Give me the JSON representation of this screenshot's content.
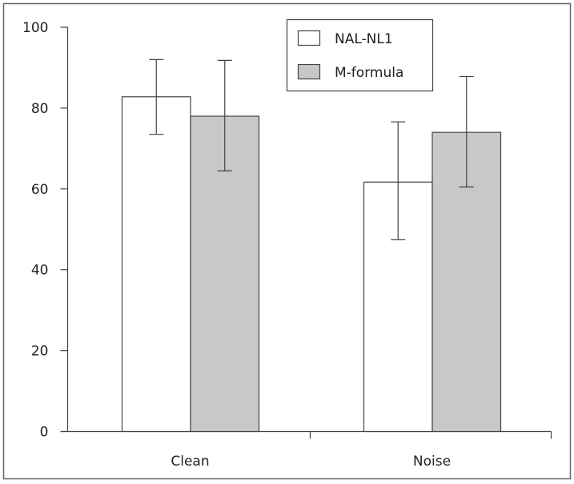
{
  "chart_data": {
    "type": "bar",
    "title": "",
    "xlabel": "",
    "ylabel": "",
    "ylim": [
      0,
      100
    ],
    "yticks": [
      0,
      20,
      40,
      60,
      80,
      100
    ],
    "categories": [
      "Clean",
      "Noise"
    ],
    "series": [
      {
        "name": "NAL-NL1",
        "color": "#ffffff",
        "values": [
          82.8,
          61.7
        ],
        "error_low": [
          73.5,
          47.5
        ],
        "error_high": [
          92.0,
          76.6
        ]
      },
      {
        "name": "M-formula",
        "color": "#c8c8c8",
        "values": [
          78.0,
          74.0
        ],
        "error_low": [
          64.5,
          60.5
        ],
        "error_high": [
          91.8,
          87.8
        ]
      }
    ],
    "legend_position": "top-center",
    "grid": false
  },
  "legend": {
    "items": [
      "NAL-NL1",
      "M-formula"
    ]
  }
}
